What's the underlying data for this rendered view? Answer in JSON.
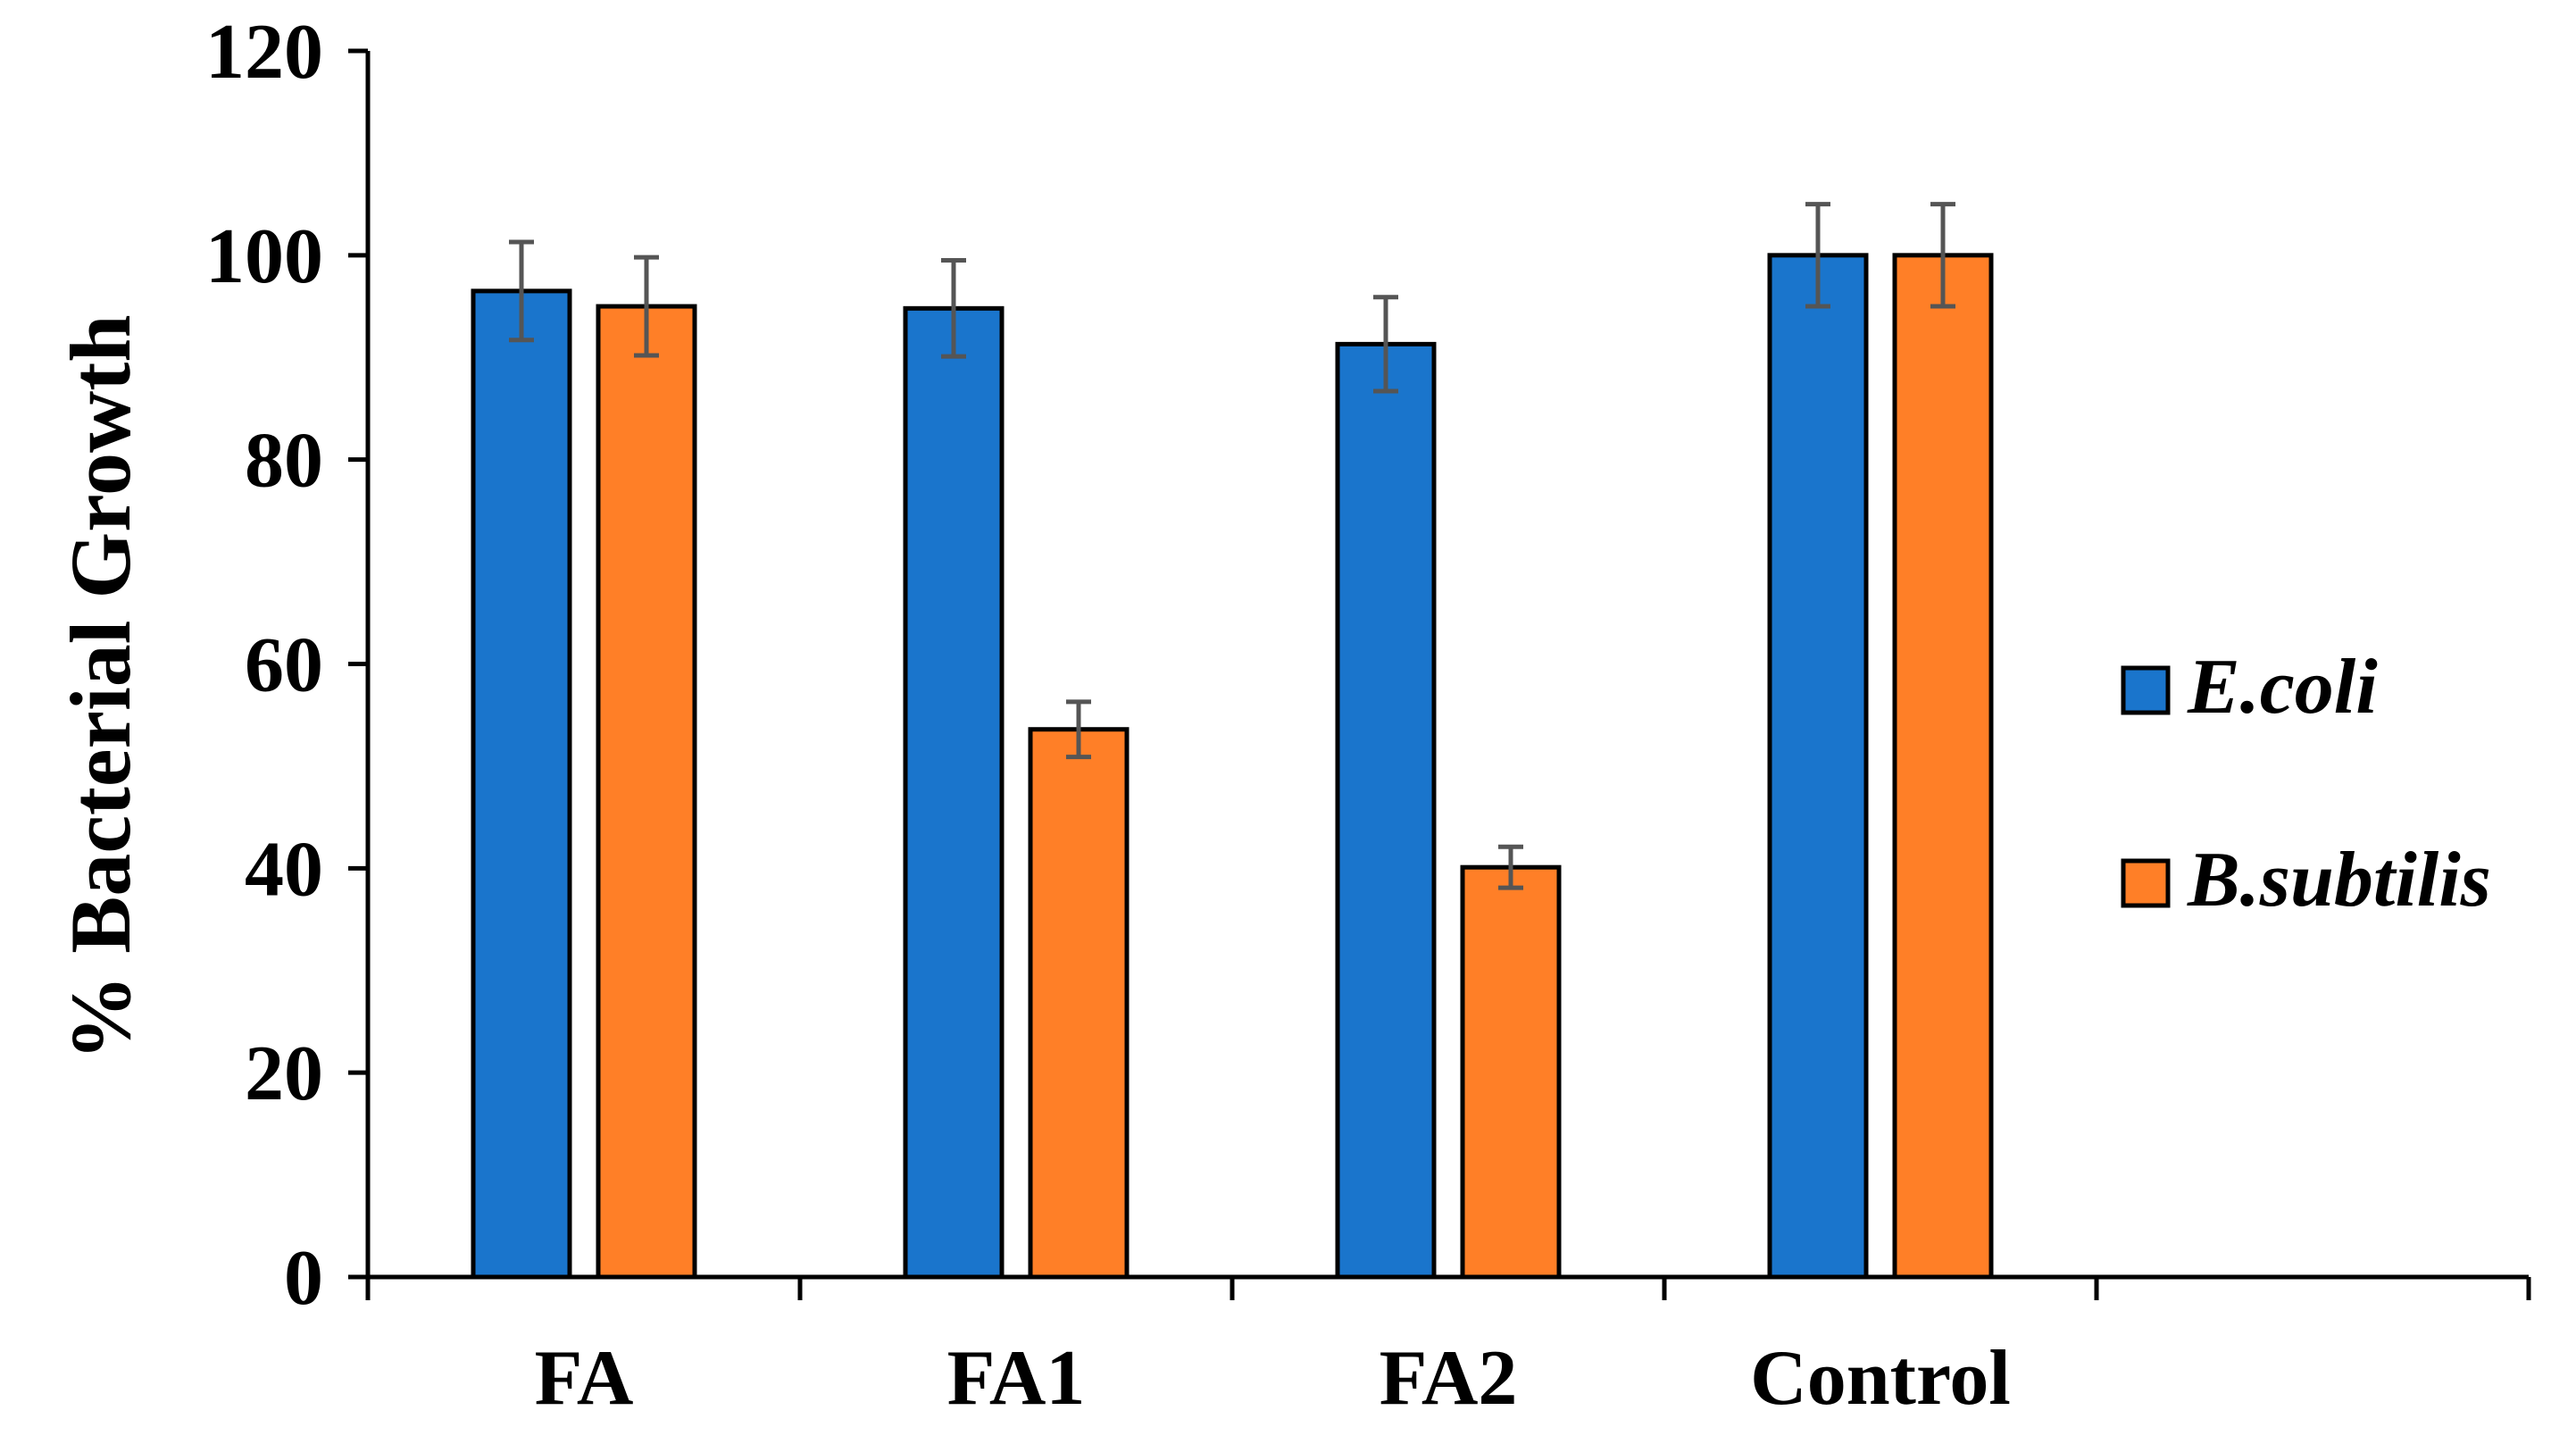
{
  "chart_data": {
    "type": "bar",
    "title": "",
    "xlabel": "",
    "ylabel": "% Bacterial Growth",
    "ylim": [
      0,
      120
    ],
    "yticks": [
      0,
      20,
      40,
      60,
      80,
      100,
      120
    ],
    "categories": [
      "FA",
      "FA1",
      "FA2",
      "Control"
    ],
    "series": [
      {
        "name": "E.coli",
        "color": "#1a75cc",
        "values": [
          96.5,
          94.8,
          91.3,
          100
        ],
        "errors": [
          4.8,
          4.7,
          4.6,
          5.0
        ]
      },
      {
        "name": "B.subtilis",
        "color": "#ff7f27",
        "values": [
          95.0,
          53.6,
          40.1,
          100
        ],
        "errors": [
          4.8,
          2.7,
          2.0,
          5.0
        ]
      }
    ],
    "legend_position": "right",
    "grid": false,
    "error_bar_color": "#555555"
  }
}
